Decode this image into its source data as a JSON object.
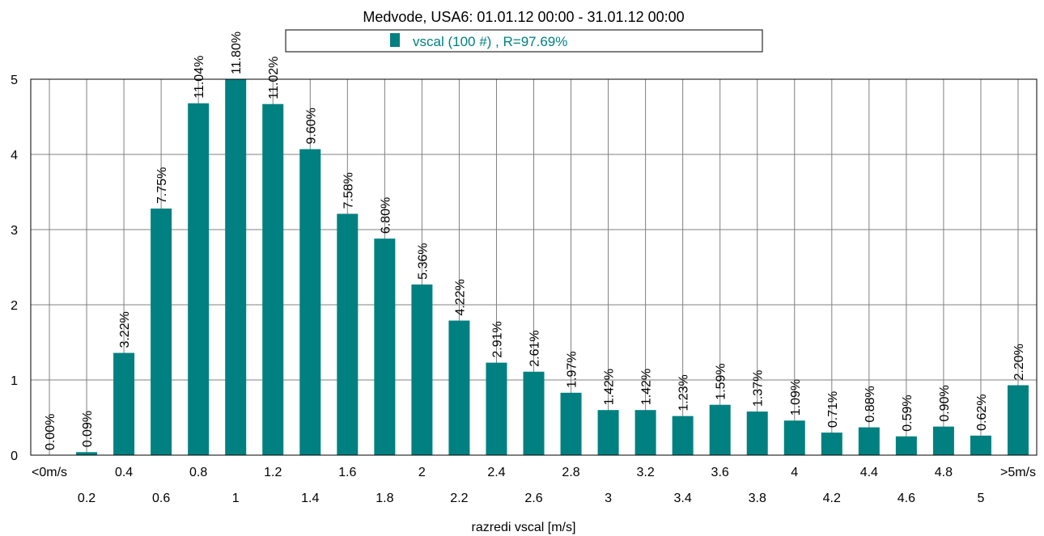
{
  "chart_data": {
    "type": "bar",
    "title": "Medvode, USA6: 01.01.12 00:00 - 31.01.12 00:00",
    "xlabel": "razredi vscal [m/s]",
    "ylabel": "",
    "ylim": [
      0,
      5
    ],
    "yticks": [
      "0",
      "1",
      "2",
      "3",
      "4",
      "5"
    ],
    "grid": true,
    "legend_placement": "top-center",
    "colors": {
      "bar": "#008080",
      "grid": "#808080",
      "axis": "#000000"
    },
    "categories": [
      "<0m/s",
      "0.2",
      "0.4",
      "0.6",
      "0.8",
      "1",
      "1.2",
      "1.4",
      "1.6",
      "1.8",
      "2",
      "2.2",
      "2.4",
      "2.6",
      "2.8",
      "3",
      "3.2",
      "3.4",
      "3.6",
      "3.8",
      "4",
      "4.2",
      "4.4",
      "4.6",
      "4.8",
      "5",
      ">5m/s"
    ],
    "series": [
      {
        "name": "vscal (100 #) , R=97.69%",
        "values": [
          0.0,
          0.04,
          1.36,
          3.28,
          4.68,
          5.0,
          4.67,
          4.07,
          3.21,
          2.88,
          2.27,
          1.79,
          1.23,
          1.11,
          0.83,
          0.6,
          0.6,
          0.52,
          0.67,
          0.58,
          0.46,
          0.3,
          0.37,
          0.25,
          0.38,
          0.26,
          0.93
        ],
        "labels": [
          "0.00%",
          "0.09%",
          "3.22%",
          "7.75%",
          "11.04%",
          "11.80%",
          "11.02%",
          "9.60%",
          "7.58%",
          "6.80%",
          "5.36%",
          "4.22%",
          "2.91%",
          "2.61%",
          "1.97%",
          "1.42%",
          "1.42%",
          "1.23%",
          "1.59%",
          "1.37%",
          "1.09%",
          "0.71%",
          "0.88%",
          "0.59%",
          "0.90%",
          "0.62%",
          "2.20%"
        ]
      }
    ]
  }
}
